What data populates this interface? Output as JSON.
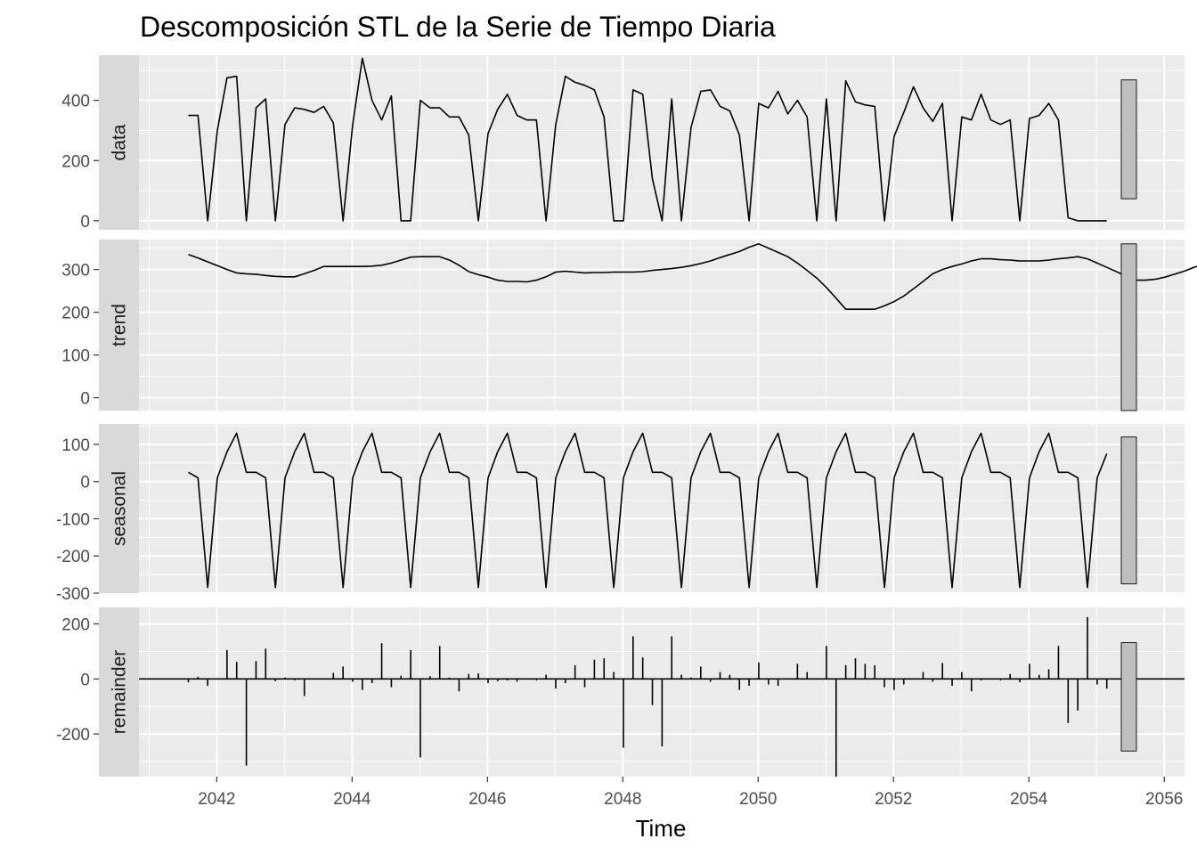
{
  "chart_data": {
    "type": "line",
    "title": "Descomposición STL de la Serie de Tiempo Diaria",
    "xlabel": "Time",
    "xlim": [
      2040.85,
      2056.3
    ],
    "x_ticks": [
      2042,
      2044,
      2046,
      2048,
      2050,
      2052,
      2054,
      2056
    ],
    "t_start": 2041.58,
    "t_step": 0.1428571,
    "panels": [
      {
        "name": "data",
        "ylim": [
          -30,
          550
        ],
        "y_ticks": [
          0,
          200,
          400
        ],
        "scale_bar": [
          73,
          468
        ],
        "values": [
          350,
          350,
          0,
          300,
          475,
          480,
          0,
          375,
          405,
          0,
          320,
          375,
          370,
          360,
          380,
          325,
          0,
          320,
          540,
          400,
          335,
          415,
          0,
          0,
          400,
          375,
          375,
          345,
          345,
          285,
          0,
          290,
          370,
          420,
          350,
          335,
          335,
          0,
          320,
          480,
          460,
          450,
          435,
          345,
          0,
          0,
          435,
          420,
          140,
          0,
          405,
          0,
          310,
          430,
          435,
          380,
          365,
          285,
          0,
          390,
          375,
          430,
          355,
          400,
          345,
          0,
          405,
          0,
          465,
          395,
          385,
          380,
          0,
          280,
          360,
          445,
          375,
          330,
          390,
          0,
          345,
          335,
          420,
          335,
          320,
          335,
          0,
          340,
          350,
          390,
          335,
          10,
          0,
          0,
          0,
          0
        ]
      },
      {
        "name": "trend",
        "ylim": [
          -30,
          370
        ],
        "y_ticks": [
          0,
          100,
          200,
          300
        ],
        "scale_bar": [
          -30,
          360
        ],
        "values": [
          335,
          327,
          318,
          309,
          300,
          292,
          290,
          289,
          286,
          284,
          283,
          283,
          290,
          298,
          307,
          307,
          307,
          307,
          307,
          308,
          310,
          315,
          322,
          329,
          330,
          330,
          330,
          322,
          310,
          295,
          288,
          282,
          275,
          272,
          272,
          271,
          275,
          283,
          294,
          296,
          294,
          292,
          293,
          293,
          294,
          294,
          294,
          295,
          298,
          300,
          302,
          305,
          309,
          314,
          320,
          328,
          335,
          342,
          352,
          360,
          350,
          340,
          330,
          315,
          298,
          280,
          258,
          233,
          207,
          207,
          207,
          207,
          215,
          225,
          238,
          255,
          272,
          290,
          300,
          307,
          313,
          320,
          325,
          325,
          323,
          322,
          320,
          320,
          320,
          322,
          325,
          327,
          330,
          325,
          315,
          305,
          295,
          284,
          275,
          275,
          277,
          282,
          289,
          296,
          305,
          312,
          316,
          320,
          320,
          318,
          315,
          310,
          307,
          307,
          310,
          313,
          316,
          317,
          318,
          318,
          317,
          315,
          310,
          307,
          302,
          300,
          297,
          298,
          300,
          300,
          300,
          300,
          300,
          297,
          285,
          268,
          245,
          218,
          190,
          158,
          125,
          90,
          55,
          20,
          -15,
          -27
        ]
      },
      {
        "name": "seasonal",
        "ylim": [
          -300,
          155
        ],
        "y_ticks": [
          -300,
          -200,
          -100,
          0,
          100
        ],
        "scale_bar": [
          -275,
          120
        ],
        "values": [
          25,
          10,
          -285,
          10,
          80,
          130,
          25,
          25,
          10,
          -285,
          10,
          80,
          130,
          25,
          25,
          10,
          -285,
          10,
          80,
          130,
          25,
          25,
          10,
          -285,
          10,
          80,
          130,
          25,
          25,
          10,
          -285,
          10,
          80,
          130,
          25,
          25,
          10,
          -285,
          10,
          80,
          130,
          25,
          25,
          10,
          -285,
          10,
          80,
          130,
          25,
          25,
          10,
          -285,
          10,
          80,
          130,
          25,
          25,
          10,
          -285,
          10,
          80,
          130,
          25,
          25,
          10,
          -285,
          10,
          80,
          130,
          25,
          25,
          10,
          -285,
          10,
          80,
          130,
          25,
          25,
          10,
          -285,
          10,
          80,
          130,
          25,
          25,
          10,
          -285,
          10,
          80,
          130,
          25,
          25,
          10,
          -285,
          10,
          75
        ]
      },
      {
        "name": "remainder",
        "ylim": [
          -355,
          260
        ],
        "y_ticks": [
          -200,
          0,
          200
        ],
        "scale_bar": [
          -262,
          132
        ],
        "values": [
          -12,
          8,
          -25,
          0,
          105,
          62,
          -315,
          65,
          110,
          -8,
          5,
          -5,
          -62,
          0,
          0,
          22,
          45,
          -10,
          -40,
          -15,
          130,
          -30,
          12,
          105,
          -285,
          10,
          120,
          5,
          -45,
          18,
          20,
          -15,
          -8,
          -5,
          -10,
          0,
          -5,
          15,
          -35,
          -15,
          50,
          -30,
          70,
          75,
          25,
          -250,
          155,
          78,
          -95,
          -245,
          155,
          15,
          5,
          45,
          -10,
          25,
          15,
          -40,
          -25,
          60,
          -20,
          -25,
          0,
          55,
          25,
          0,
          120,
          -355,
          50,
          75,
          55,
          50,
          -30,
          -40,
          -20,
          0,
          25,
          -10,
          58,
          -25,
          25,
          -45,
          -5,
          0,
          -5,
          18,
          -12,
          55,
          15,
          35,
          120,
          -160,
          -115,
          225,
          -20,
          -35
        ]
      }
    ]
  }
}
